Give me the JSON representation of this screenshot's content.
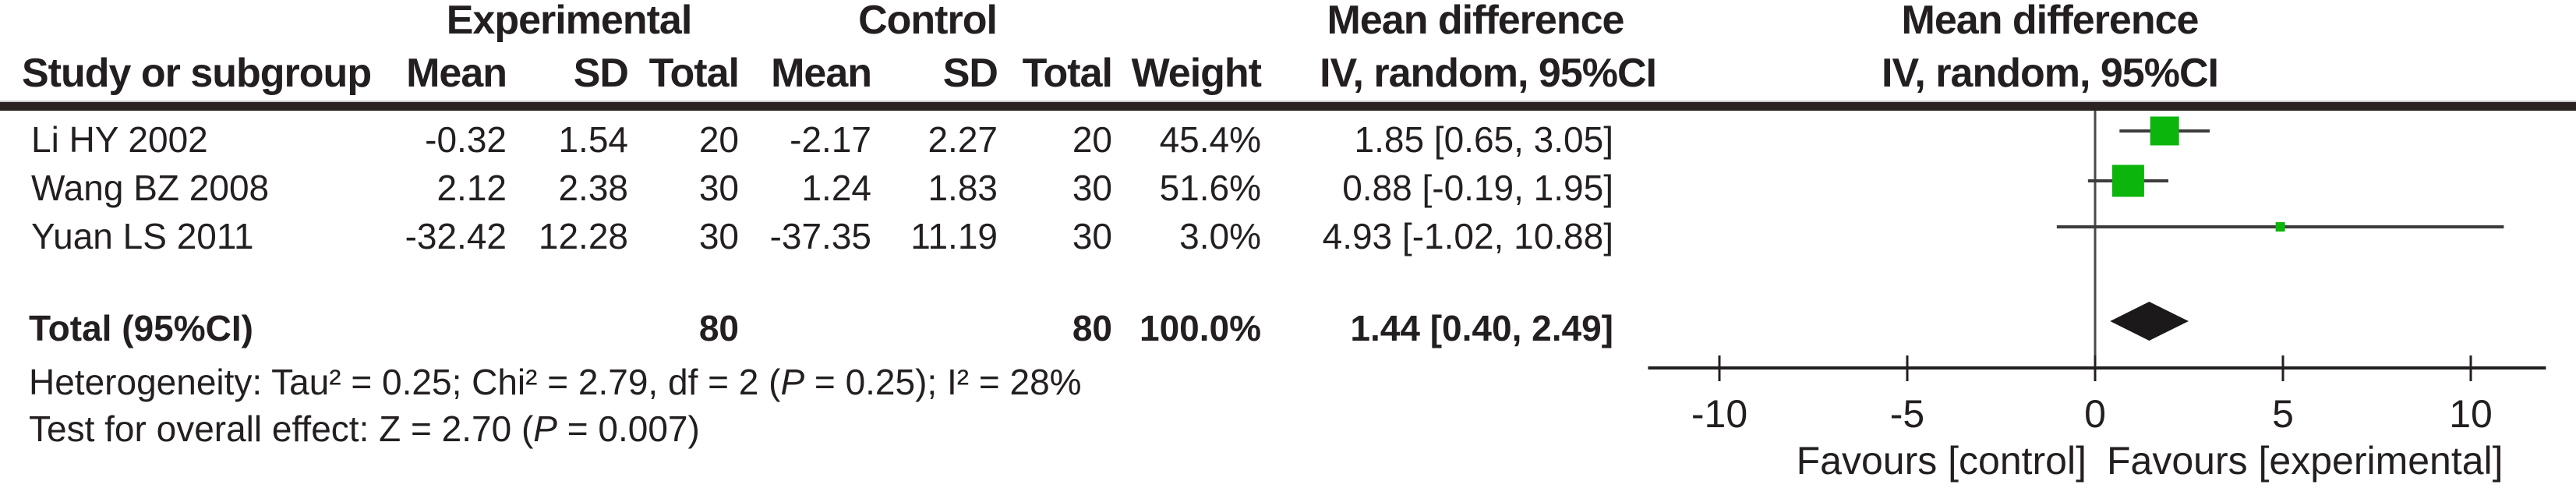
{
  "table": {
    "group_headers": {
      "experimental": "Experimental",
      "control": "Control",
      "mean_difference_text": "Mean difference",
      "mean_difference_plot": "Mean difference"
    },
    "col_headers": {
      "study": "Study or subgroup",
      "exp_mean": "Mean",
      "exp_sd": "SD",
      "exp_total": "Total",
      "ctrl_mean": "Mean",
      "ctrl_sd": "SD",
      "ctrl_total": "Total",
      "weight": "Weight",
      "md_text": "IV, random, 95%CI",
      "md_plot": "IV, random, 95%CI"
    },
    "rows": [
      {
        "study": "Li HY 2002",
        "exp_mean": "-0.32",
        "exp_sd": "1.54",
        "exp_total": "20",
        "ctrl_mean": "-2.17",
        "ctrl_sd": "2.27",
        "ctrl_total": "20",
        "weight": "45.4%",
        "md_ci": "1.85 [0.65, 3.05]"
      },
      {
        "study": "Wang BZ 2008",
        "exp_mean": "2.12",
        "exp_sd": "2.38",
        "exp_total": "30",
        "ctrl_mean": "1.24",
        "ctrl_sd": "1.83",
        "ctrl_total": "30",
        "weight": "51.6%",
        "md_ci": "0.88 [-0.19, 1.95]"
      },
      {
        "study": "Yuan LS 2011",
        "exp_mean": "-32.42",
        "exp_sd": "12.28",
        "exp_total": "30",
        "ctrl_mean": "-37.35",
        "ctrl_sd": "11.19",
        "ctrl_total": "30",
        "weight": "3.0%",
        "md_ci": "4.93 [-1.02, 10.88]"
      }
    ],
    "total_row": {
      "label": "Total (95%CI)",
      "exp_total": "80",
      "ctrl_total": "80",
      "weight": "100.0%",
      "md_ci": "1.44 [0.40, 2.49]"
    },
    "footnotes": {
      "heterogeneity": "Heterogeneity: Tau² = 0.25; Chi² = 2.79, df = 2 (P = 0.25); I² = 28%",
      "overall_effect": "Test for overall effect: Z = 2.70 (P = 0.007)"
    }
  },
  "chart_data": {
    "type": "forest",
    "title": "Mean difference",
    "subtitle": "IV, random, 95%CI",
    "effect_measure": "Mean difference, IV, random, 95%CI",
    "axis": {
      "ticks": [
        -10,
        -5,
        0,
        5,
        10
      ],
      "range": [
        -11.9,
        12.0
      ],
      "zero_line": 0
    },
    "x_axis_labels": {
      "left": "Favours [control]",
      "right": "Favours [experimental]"
    },
    "studies": [
      {
        "name": "Li HY 2002",
        "md": 1.85,
        "ci_low": 0.65,
        "ci_high": 3.05,
        "weight_pct": 45.4
      },
      {
        "name": "Wang BZ 2008",
        "md": 0.88,
        "ci_low": -0.19,
        "ci_high": 1.95,
        "weight_pct": 51.6
      },
      {
        "name": "Yuan LS 2011",
        "md": 4.93,
        "ci_low": -1.02,
        "ci_high": 10.88,
        "weight_pct": 3.0
      }
    ],
    "total": {
      "md": 1.44,
      "ci_low": 0.4,
      "ci_high": 2.49
    },
    "marker_color": "#0cb50c",
    "diamond_color": "#1c191a",
    "axis_color": "#231f20",
    "ci_line_color": "#3c3c3c",
    "zero_line_color": "#4a4a4a"
  }
}
